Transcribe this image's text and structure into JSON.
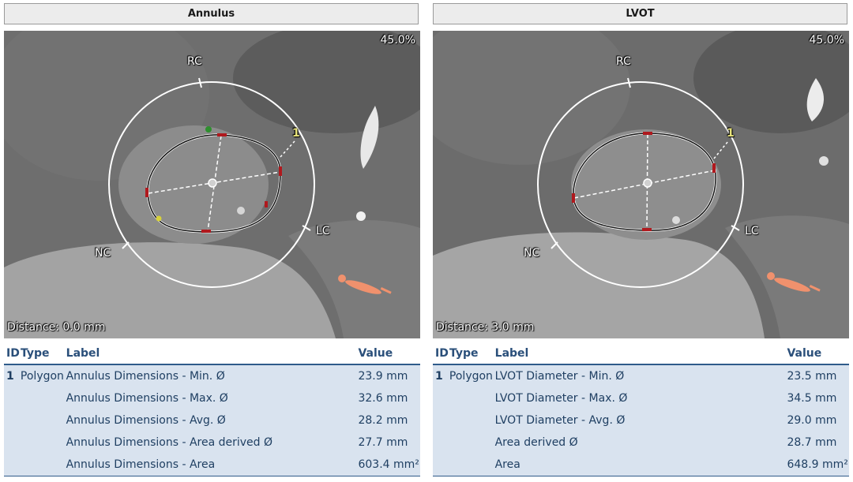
{
  "panels": [
    {
      "title": "Annulus",
      "zoom": "45.0%",
      "distance": "Distance: 0.0 mm",
      "landmarks": {
        "rc": "RC",
        "lc": "LC",
        "nc": "NC",
        "index": "1"
      },
      "table": {
        "headers": {
          "id": "ID",
          "type": "Type",
          "label": "Label",
          "value": "Value"
        },
        "rows": [
          {
            "id": "1",
            "type": "Polygon",
            "label": "Annulus Dimensions - Min. Ø",
            "value": "23.9 mm"
          },
          {
            "id": "",
            "type": "",
            "label": "Annulus Dimensions - Max. Ø",
            "value": "32.6 mm"
          },
          {
            "id": "",
            "type": "",
            "label": "Annulus Dimensions - Avg. Ø",
            "value": "28.2 mm"
          },
          {
            "id": "",
            "type": "",
            "label": "Annulus Dimensions - Area derived Ø",
            "value": "27.7 mm"
          },
          {
            "id": "",
            "type": "",
            "label": "Annulus Dimensions - Area",
            "value": "603.4 mm²"
          }
        ]
      }
    },
    {
      "title": "LVOT",
      "zoom": "45.0%",
      "distance": "Distance: 3.0 mm",
      "landmarks": {
        "rc": "RC",
        "lc": "LC",
        "nc": "NC",
        "index": "1"
      },
      "table": {
        "headers": {
          "id": "ID",
          "type": "Type",
          "label": "Label",
          "value": "Value"
        },
        "rows": [
          {
            "id": "1",
            "type": "Polygon",
            "label": "LVOT Diameter - Min. Ø",
            "value": "23.5 mm"
          },
          {
            "id": "",
            "type": "",
            "label": "LVOT Diameter - Max. Ø",
            "value": "34.5 mm"
          },
          {
            "id": "",
            "type": "",
            "label": "LVOT Diameter - Avg. Ø",
            "value": "29.0 mm"
          },
          {
            "id": "",
            "type": "",
            "label": "Area derived Ø",
            "value": "28.7 mm"
          },
          {
            "id": "",
            "type": "",
            "label": "Area",
            "value": "648.9 mm²"
          }
        ]
      }
    }
  ]
}
